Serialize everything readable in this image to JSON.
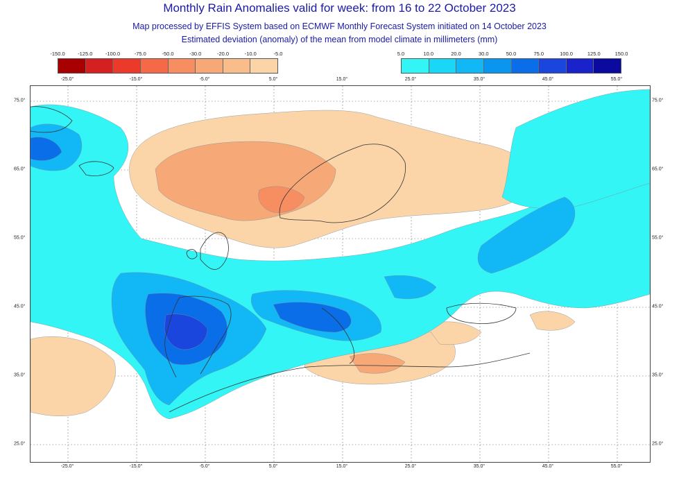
{
  "title": "Monthly Rain Anomalies valid for week: from 16 to 22 October 2023",
  "subtitle_1": "Map processed by EFFIS System based on ECMWF Monthly Forecast System initiated on 14 October 2023",
  "subtitle_2": "Estimated deviation (anomaly) of the mean from model climate in millimeters (mm)",
  "legend_negative": {
    "labels": [
      "-150.0",
      "-125.0",
      "-100.0",
      "-75.0",
      "-50.0",
      "-30.0",
      "-20.0",
      "-10.0",
      "-5.0"
    ],
    "colors": [
      "#a80000",
      "#d42020",
      "#ec3a2a",
      "#f46a48",
      "#f68e62",
      "#f7a877",
      "#f9bd8c",
      "#fbd4a8"
    ]
  },
  "legend_positive": {
    "labels": [
      "5.0",
      "10.0",
      "20.0",
      "30.0",
      "50.0",
      "75.0",
      "100.0",
      "125.0",
      "150.0"
    ],
    "colors": [
      "#33f5f5",
      "#1ad7f7",
      "#12b7f5",
      "#0a96ef",
      "#0a6ee8",
      "#1a46dd",
      "#1a22cc",
      "#0a0a9e"
    ]
  },
  "axes": {
    "lon_ticks": [
      "-25.0°",
      "-15.0°",
      "-5.0°",
      "5.0°",
      "15.0°",
      "25.0°",
      "35.0°",
      "45.0°",
      "55.0°"
    ],
    "lat_ticks": [
      "75.0°",
      "65.0°",
      "55.0°",
      "45.0°",
      "35.0°",
      "25.0°"
    ]
  },
  "map_colors": {
    "land": "#ffffff",
    "ocean": "#ffffff",
    "neutral": "#ffffff",
    "light_positive": "#33f5f5",
    "pos_10": "#1ad7f7",
    "pos_20": "#12b7f5",
    "pos_30": "#0a96ef",
    "pos_50": "#0a6ee8",
    "pos_75": "#1a46dd",
    "light_negative": "#fbd4a8",
    "neg_10": "#f9bd8c",
    "neg_20": "#f7a877",
    "neg_30": "#f68e62"
  }
}
